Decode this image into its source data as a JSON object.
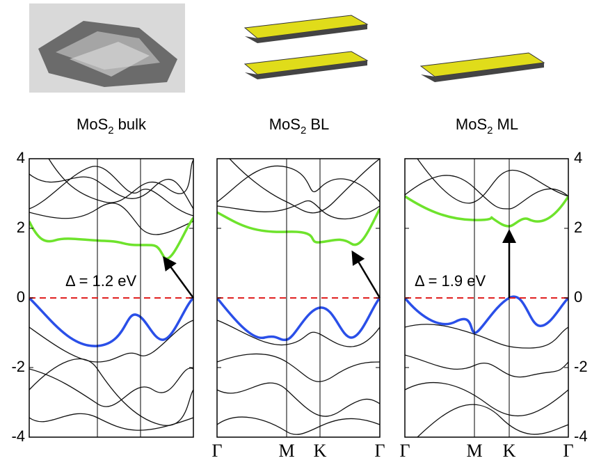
{
  "yticks": [
    4,
    2,
    0,
    -2,
    -4
  ],
  "panels": [
    {
      "title": {
        "base": "MoS",
        "sub": "2",
        "suffix": "bulk"
      },
      "gap_label": "Δ = 1.2 eV",
      "kpoints": []
    },
    {
      "title": {
        "base": "MoS",
        "sub": "2",
        "suffix": "BL"
      },
      "kpoints": [
        "Γ",
        "M",
        "K",
        "Γ"
      ]
    },
    {
      "title": {
        "base": "MoS",
        "sub": "2",
        "suffix": "ML"
      },
      "gap_label": "Δ = 1.9 eV",
      "kpoints": [
        "Γ",
        "M",
        "K",
        "Γ"
      ]
    }
  ]
}
